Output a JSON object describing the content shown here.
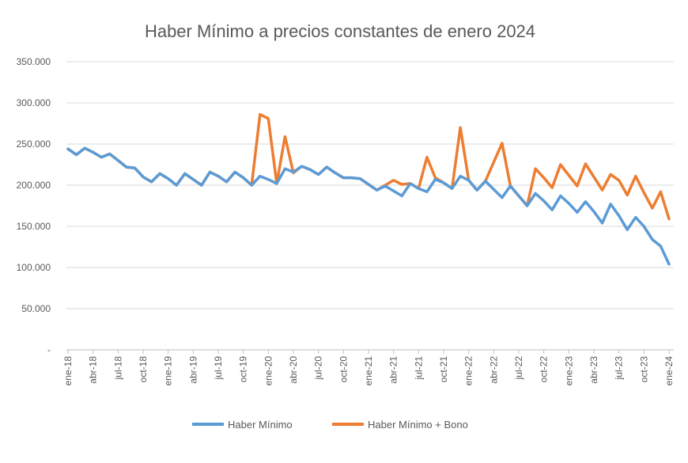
{
  "chart_data": {
    "type": "line",
    "title": "Haber Mínimo a precios constantes de enero 2024",
    "xlabel": "",
    "ylabel": "",
    "ylim": [
      0,
      350000
    ],
    "y_ticks": [
      0,
      50000,
      100000,
      150000,
      200000,
      250000,
      300000,
      350000
    ],
    "y_tick_labels": [
      "-",
      "50.000",
      "100.000",
      "150.000",
      "200.000",
      "250.000",
      "300.000",
      "350.000"
    ],
    "grid": true,
    "legend_position": "bottom",
    "categories": [
      "ene-18",
      "feb-18",
      "mar-18",
      "abr-18",
      "may-18",
      "jun-18",
      "jul-18",
      "ago-18",
      "sep-18",
      "oct-18",
      "nov-18",
      "dic-18",
      "ene-19",
      "feb-19",
      "mar-19",
      "abr-19",
      "may-19",
      "jun-19",
      "jul-19",
      "ago-19",
      "sep-19",
      "oct-19",
      "nov-19",
      "dic-19",
      "ene-20",
      "feb-20",
      "mar-20",
      "abr-20",
      "may-20",
      "jun-20",
      "jul-20",
      "ago-20",
      "sep-20",
      "oct-20",
      "nov-20",
      "dic-20",
      "ene-21",
      "feb-21",
      "mar-21",
      "abr-21",
      "may-21",
      "jun-21",
      "jul-21",
      "ago-21",
      "sep-21",
      "oct-21",
      "nov-21",
      "dic-21",
      "ene-22",
      "feb-22",
      "mar-22",
      "abr-22",
      "may-22",
      "jun-22",
      "jul-22",
      "ago-22",
      "sep-22",
      "oct-22",
      "nov-22",
      "dic-22",
      "ene-23",
      "feb-23",
      "mar-23",
      "abr-23",
      "may-23",
      "jun-23",
      "jul-23",
      "ago-23",
      "sep-23",
      "oct-23",
      "nov-23",
      "dic-23",
      "ene-24"
    ],
    "x_tick_labels": [
      "ene-18",
      "abr-18",
      "jul-18",
      "oct-18",
      "ene-19",
      "abr-19",
      "jul-19",
      "oct-19",
      "ene-20",
      "abr-20",
      "jul-20",
      "oct-20",
      "ene-21",
      "abr-21",
      "jul-21",
      "oct-21",
      "ene-22",
      "abr-22",
      "jul-22",
      "oct-22",
      "ene-23",
      "abr-23",
      "jul-23",
      "oct-23",
      "ene-24"
    ],
    "series": [
      {
        "name": "Haber Mínimo",
        "color": "#5B9BD5",
        "values": [
          244000,
          237000,
          245000,
          240000,
          234000,
          238000,
          230000,
          222000,
          221000,
          210000,
          204000,
          214000,
          208000,
          200000,
          214000,
          207000,
          200000,
          216000,
          211000,
          204000,
          216000,
          209000,
          200000,
          211000,
          207000,
          202000,
          220000,
          216000,
          223000,
          219000,
          213000,
          222000,
          215000,
          209000,
          209000,
          208000,
          201000,
          194000,
          199000,
          193000,
          187000,
          202000,
          196000,
          192000,
          207000,
          203000,
          196000,
          211000,
          206000,
          194000,
          205000,
          195000,
          185000,
          199000,
          187000,
          175000,
          190000,
          181000,
          170000,
          187000,
          178000,
          167000,
          180000,
          168000,
          154000,
          177000,
          163000,
          146000,
          161000,
          150000,
          134000,
          126000,
          104000
        ]
      },
      {
        "name": "Haber Mínimo + Bono",
        "color": "#ED7D31",
        "values": [
          244000,
          237000,
          245000,
          240000,
          234000,
          238000,
          230000,
          222000,
          221000,
          210000,
          204000,
          214000,
          208000,
          200000,
          214000,
          207000,
          200000,
          216000,
          211000,
          204000,
          216000,
          209000,
          200000,
          286000,
          281000,
          202000,
          259000,
          215000,
          223000,
          219000,
          213000,
          222000,
          215000,
          209000,
          209000,
          208000,
          201000,
          194000,
          200000,
          206000,
          201000,
          202000,
          196000,
          234000,
          209000,
          203000,
          196000,
          270000,
          206000,
          194000,
          205000,
          228000,
          251000,
          199000,
          187000,
          175000,
          220000,
          209000,
          197000,
          225000,
          212000,
          199000,
          226000,
          210000,
          194000,
          213000,
          206000,
          188000,
          211000,
          191000,
          172000,
          192000,
          159000
        ]
      }
    ]
  }
}
